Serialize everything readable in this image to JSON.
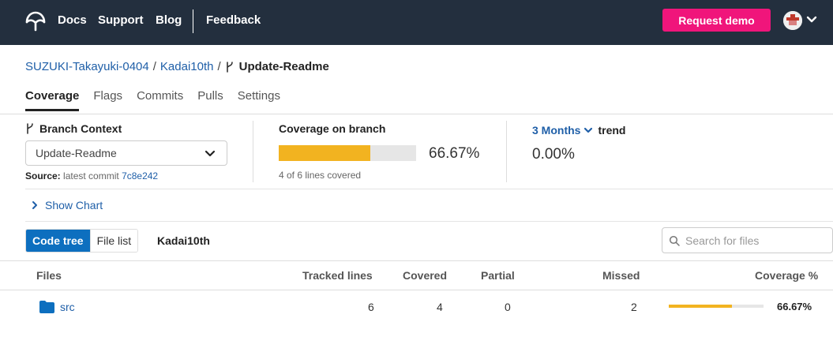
{
  "nav": {
    "links": [
      "Docs",
      "Support",
      "Blog",
      "Feedback"
    ],
    "cta": "Request demo",
    "brand_color": "#232f3e",
    "cta_color": "#f0157b"
  },
  "breadcrumb": {
    "owner": "SUZUKI-Takayuki-0404",
    "repo": "Kadai10th",
    "branch": "Update-Readme"
  },
  "tabs": [
    "Coverage",
    "Flags",
    "Commits",
    "Pulls",
    "Settings"
  ],
  "active_tab": "Coverage",
  "branch_context": {
    "title": "Branch Context",
    "selected": "Update-Readme",
    "source_label": "Source:",
    "source_text": "latest commit",
    "commit": "7c8e242"
  },
  "coverage": {
    "title": "Coverage on branch",
    "percent_text": "66.67%",
    "fraction": 0.6667,
    "lines_text": "4 of 6 lines covered",
    "bar_color": "#f2b320"
  },
  "trend": {
    "range": "3 Months",
    "label": "trend",
    "value": "0.00%"
  },
  "show_chart": "Show Chart",
  "view_toggle": {
    "options": [
      "Code tree",
      "File list"
    ],
    "active": "Code tree"
  },
  "current_path": "Kadai10th",
  "search": {
    "placeholder": "Search for files",
    "value": ""
  },
  "table": {
    "headers": [
      "Files",
      "Tracked lines",
      "Covered",
      "Partial",
      "Missed",
      "Coverage %"
    ],
    "rows": [
      {
        "name": "src",
        "icon": "folder-icon",
        "tracked": "6",
        "covered": "4",
        "partial": "0",
        "missed": "2",
        "coverage_text": "66.67%",
        "coverage_fraction": 0.6667
      }
    ]
  }
}
